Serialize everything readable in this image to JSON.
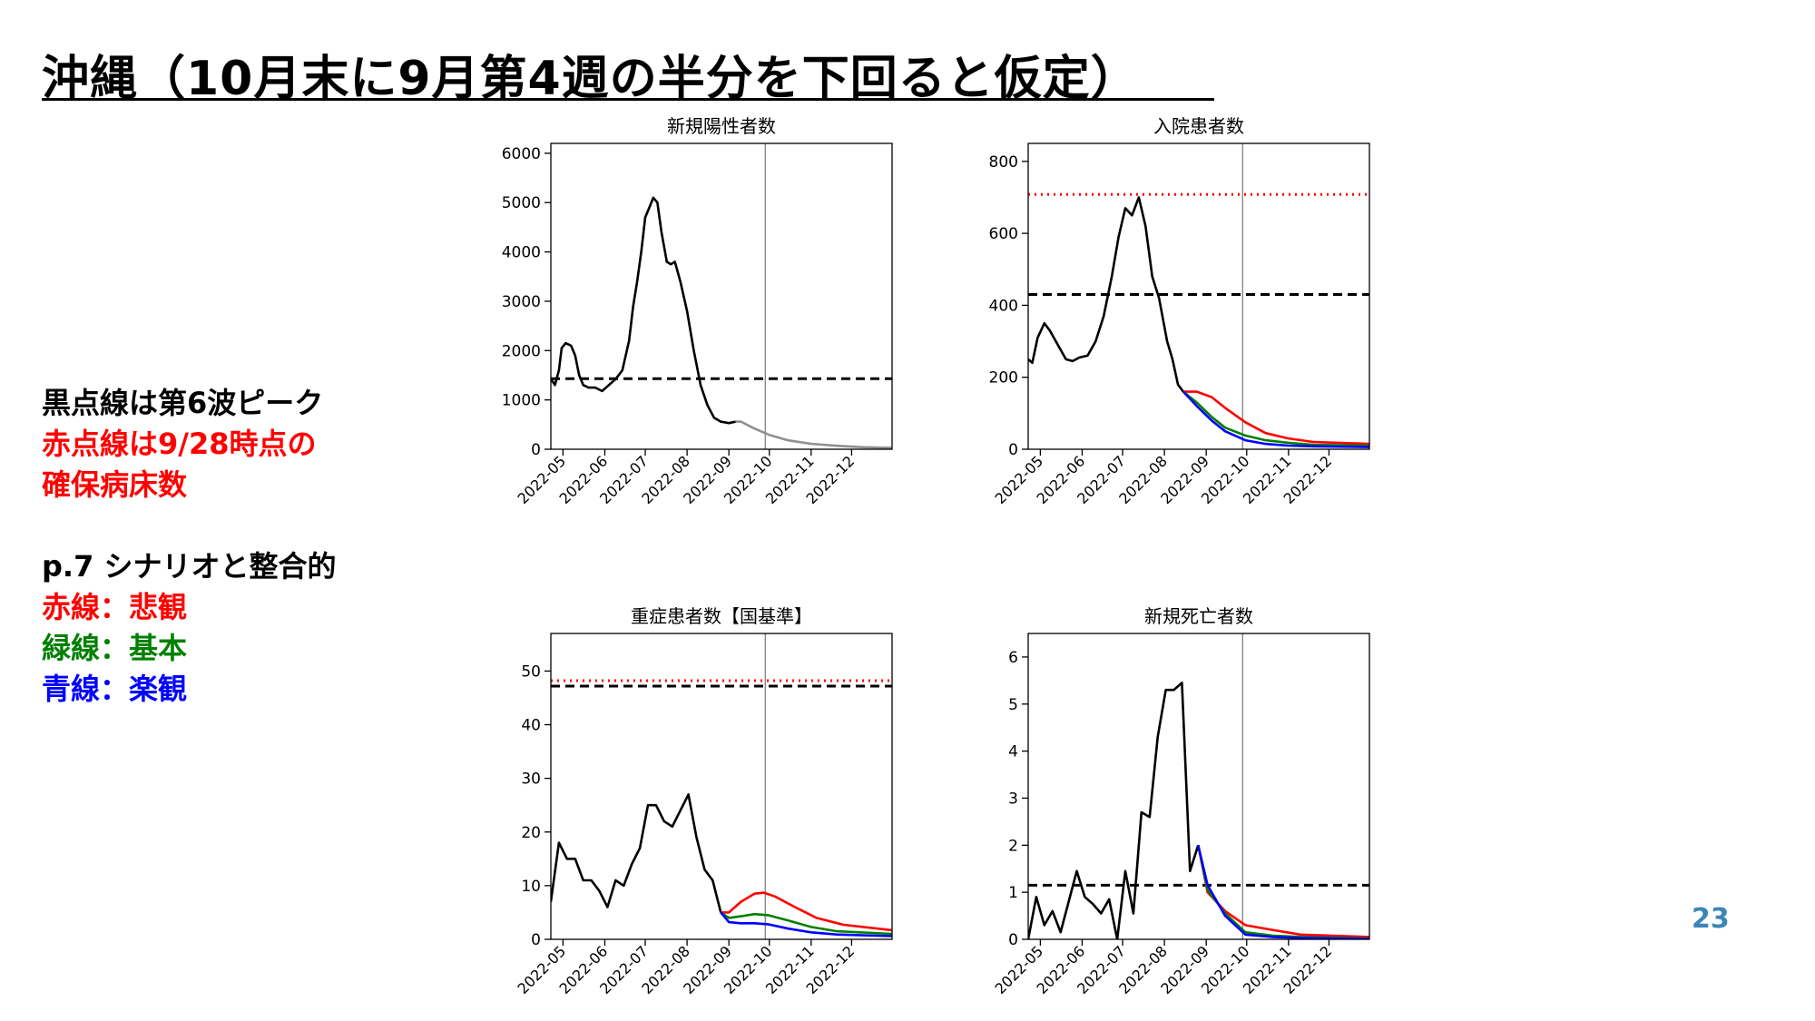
{
  "slide": {
    "title": "沖縄（10月末に9月第4週の半分を下回ると仮定）",
    "page_number": "23",
    "notes": {
      "line1": "黒点線は第6波ピーク",
      "line2": "赤点線は9/28時点の",
      "line3": "確保病床数",
      "line4": "p.7 シナリオと整合的",
      "line5": "赤線：悲観",
      "line6": "緑線：基本",
      "line7": "青線：楽観"
    }
  },
  "colors": {
    "observed": "#000000",
    "projection_grey": "#909090",
    "pessimistic": "#ff0000",
    "baseline": "#008000",
    "optimistic": "#0000ff",
    "page_number": "#3c86b8"
  },
  "chart_data": [
    {
      "id": "new-cases",
      "type": "line",
      "title": "新規陽性者数",
      "x_ticks": [
        "2022-05",
        "2022-06",
        "2022-07",
        "2022-08",
        "2022-09",
        "2022-10",
        "2022-11",
        "2022-12"
      ],
      "x_range": [
        "2022-04-22",
        "2022-12-31"
      ],
      "ylim": [
        0,
        6200
      ],
      "y_ticks": [
        0,
        1000,
        2000,
        3000,
        4000,
        5000,
        6000
      ],
      "vline": "2022-09-28",
      "hlines": [
        {
          "value": 1430,
          "style": "dashed",
          "color": "#000000"
        }
      ],
      "series": [
        {
          "color": "#000000",
          "points": [
            [
              "2022-04-22",
              1430
            ],
            [
              "2022-04-25",
              1300
            ],
            [
              "2022-04-28",
              1600
            ],
            [
              "2022-04-30",
              2050
            ],
            [
              "2022-05-03",
              2150
            ],
            [
              "2022-05-07",
              2100
            ],
            [
              "2022-05-10",
              1900
            ],
            [
              "2022-05-13",
              1500
            ],
            [
              "2022-05-16",
              1300
            ],
            [
              "2022-05-20",
              1250
            ],
            [
              "2022-05-25",
              1250
            ],
            [
              "2022-05-30",
              1180
            ],
            [
              "2022-06-04",
              1300
            ],
            [
              "2022-06-09",
              1420
            ],
            [
              "2022-06-14",
              1600
            ],
            [
              "2022-06-19",
              2200
            ],
            [
              "2022-06-22",
              2900
            ],
            [
              "2022-06-25",
              3400
            ],
            [
              "2022-06-28",
              4000
            ],
            [
              "2022-07-01",
              4700
            ],
            [
              "2022-07-04",
              4900
            ],
            [
              "2022-07-07",
              5100
            ],
            [
              "2022-07-10",
              5000
            ],
            [
              "2022-07-13",
              4400
            ],
            [
              "2022-07-17",
              3800
            ],
            [
              "2022-07-20",
              3750
            ],
            [
              "2022-07-23",
              3800
            ],
            [
              "2022-07-27",
              3400
            ],
            [
              "2022-08-01",
              2800
            ],
            [
              "2022-08-06",
              2000
            ],
            [
              "2022-08-11",
              1300
            ],
            [
              "2022-08-16",
              900
            ],
            [
              "2022-08-21",
              640
            ],
            [
              "2022-08-26",
              560
            ],
            [
              "2022-09-01",
              530
            ],
            [
              "2022-09-06",
              560
            ]
          ]
        },
        {
          "color": "#909090",
          "points": [
            [
              "2022-09-06",
              560
            ],
            [
              "2022-09-10",
              560
            ],
            [
              "2022-09-20",
              420
            ],
            [
              "2022-10-01",
              290
            ],
            [
              "2022-10-15",
              180
            ],
            [
              "2022-11-01",
              110
            ],
            [
              "2022-11-20",
              70
            ],
            [
              "2022-12-10",
              40
            ],
            [
              "2022-12-31",
              30
            ]
          ]
        }
      ]
    },
    {
      "id": "hospitalized",
      "type": "line",
      "title": "入院患者数",
      "x_ticks": [
        "2022-05",
        "2022-06",
        "2022-07",
        "2022-08",
        "2022-09",
        "2022-10",
        "2022-11",
        "2022-12"
      ],
      "x_range": [
        "2022-04-22",
        "2022-12-31"
      ],
      "ylim": [
        0,
        850
      ],
      "y_ticks": [
        0,
        200,
        400,
        600,
        800
      ],
      "vline": "2022-09-28",
      "hlines": [
        {
          "value": 708,
          "style": "dotted",
          "color": "#ff0000"
        },
        {
          "value": 430,
          "style": "dashed",
          "color": "#000000"
        }
      ],
      "series": [
        {
          "color": "#000000",
          "points": [
            [
              "2022-04-22",
              250
            ],
            [
              "2022-04-25",
              240
            ],
            [
              "2022-04-29",
              310
            ],
            [
              "2022-05-04",
              350
            ],
            [
              "2022-05-08",
              330
            ],
            [
              "2022-05-14",
              290
            ],
            [
              "2022-05-20",
              250
            ],
            [
              "2022-05-25",
              245
            ],
            [
              "2022-05-30",
              255
            ],
            [
              "2022-06-05",
              260
            ],
            [
              "2022-06-11",
              300
            ],
            [
              "2022-06-17",
              370
            ],
            [
              "2022-06-23",
              480
            ],
            [
              "2022-06-28",
              590
            ],
            [
              "2022-07-03",
              670
            ],
            [
              "2022-07-08",
              650
            ],
            [
              "2022-07-13",
              700
            ],
            [
              "2022-07-18",
              620
            ],
            [
              "2022-07-23",
              480
            ],
            [
              "2022-07-28",
              420
            ],
            [
              "2022-08-03",
              300
            ],
            [
              "2022-08-07",
              250
            ],
            [
              "2022-08-11",
              180
            ],
            [
              "2022-08-15",
              160
            ]
          ]
        },
        {
          "name": "悲観",
          "color": "#ff0000",
          "points": [
            [
              "2022-08-15",
              160
            ],
            [
              "2022-08-25",
              160
            ],
            [
              "2022-09-05",
              145
            ],
            [
              "2022-09-15",
              115
            ],
            [
              "2022-09-30",
              75
            ],
            [
              "2022-10-15",
              45
            ],
            [
              "2022-11-01",
              30
            ],
            [
              "2022-11-20",
              20
            ],
            [
              "2022-12-31",
              15
            ]
          ]
        },
        {
          "name": "基本",
          "color": "#008000",
          "points": [
            [
              "2022-08-15",
              160
            ],
            [
              "2022-08-25",
              130
            ],
            [
              "2022-09-05",
              90
            ],
            [
              "2022-09-15",
              60
            ],
            [
              "2022-09-30",
              38
            ],
            [
              "2022-10-15",
              25
            ],
            [
              "2022-11-01",
              18
            ],
            [
              "2022-11-20",
              12
            ],
            [
              "2022-12-31",
              10
            ]
          ]
        },
        {
          "name": "楽観",
          "color": "#0000ff",
          "points": [
            [
              "2022-08-15",
              160
            ],
            [
              "2022-08-25",
              120
            ],
            [
              "2022-09-05",
              80
            ],
            [
              "2022-09-15",
              50
            ],
            [
              "2022-09-30",
              25
            ],
            [
              "2022-10-15",
              15
            ],
            [
              "2022-11-01",
              10
            ],
            [
              "2022-11-20",
              8
            ],
            [
              "2022-12-31",
              6
            ]
          ]
        }
      ]
    },
    {
      "id": "severe",
      "type": "line",
      "title": "重症患者数【国基準】",
      "x_ticks": [
        "2022-05",
        "2022-06",
        "2022-07",
        "2022-08",
        "2022-09",
        "2022-10",
        "2022-11",
        "2022-12"
      ],
      "x_range": [
        "2022-04-22",
        "2022-12-31"
      ],
      "ylim": [
        0,
        57
      ],
      "y_ticks": [
        0,
        10,
        20,
        30,
        40,
        50
      ],
      "vline": "2022-09-28",
      "hlines": [
        {
          "value": 48.2,
          "style": "dotted",
          "color": "#ff0000"
        },
        {
          "value": 47.2,
          "style": "dashed",
          "color": "#000000"
        }
      ],
      "series": [
        {
          "color": "#000000",
          "points": [
            [
              "2022-04-22",
              7
            ],
            [
              "2022-04-28",
              18
            ],
            [
              "2022-05-04",
              15
            ],
            [
              "2022-05-10",
              15
            ],
            [
              "2022-05-16",
              11
            ],
            [
              "2022-05-22",
              11
            ],
            [
              "2022-05-28",
              9
            ],
            [
              "2022-06-03",
              6
            ],
            [
              "2022-06-09",
              11
            ],
            [
              "2022-06-15",
              10
            ],
            [
              "2022-06-21",
              14
            ],
            [
              "2022-06-27",
              17
            ],
            [
              "2022-07-03",
              25
            ],
            [
              "2022-07-09",
              25
            ],
            [
              "2022-07-15",
              22
            ],
            [
              "2022-07-21",
              21
            ],
            [
              "2022-07-27",
              24
            ],
            [
              "2022-08-02",
              27
            ],
            [
              "2022-08-08",
              19
            ],
            [
              "2022-08-14",
              13
            ],
            [
              "2022-08-20",
              11
            ],
            [
              "2022-08-26",
              5
            ]
          ]
        },
        {
          "name": "悲観",
          "color": "#ff0000",
          "points": [
            [
              "2022-08-26",
              5
            ],
            [
              "2022-09-01",
              5
            ],
            [
              "2022-09-10",
              7
            ],
            [
              "2022-09-20",
              8.5
            ],
            [
              "2022-09-27",
              8.7
            ],
            [
              "2022-10-05",
              8
            ],
            [
              "2022-10-20",
              6
            ],
            [
              "2022-11-05",
              4
            ],
            [
              "2022-11-25",
              2.7
            ],
            [
              "2022-12-31",
              1.7
            ]
          ]
        },
        {
          "name": "基本",
          "color": "#008000",
          "points": [
            [
              "2022-08-26",
              5
            ],
            [
              "2022-09-01",
              4
            ],
            [
              "2022-09-10",
              4.3
            ],
            [
              "2022-09-20",
              4.7
            ],
            [
              "2022-09-30",
              4.5
            ],
            [
              "2022-10-15",
              3.5
            ],
            [
              "2022-11-01",
              2.3
            ],
            [
              "2022-11-20",
              1.5
            ],
            [
              "2022-12-31",
              1
            ]
          ]
        },
        {
          "name": "楽観",
          "color": "#0000ff",
          "points": [
            [
              "2022-08-26",
              5
            ],
            [
              "2022-09-01",
              3.2
            ],
            [
              "2022-09-10",
              3
            ],
            [
              "2022-09-20",
              3
            ],
            [
              "2022-09-30",
              2.8
            ],
            [
              "2022-10-15",
              2
            ],
            [
              "2022-11-01",
              1.3
            ],
            [
              "2022-11-20",
              0.9
            ],
            [
              "2022-12-31",
              0.6
            ]
          ]
        }
      ]
    },
    {
      "id": "deaths",
      "type": "line",
      "title": "新規死亡者数",
      "x_ticks": [
        "2022-05",
        "2022-06",
        "2022-07",
        "2022-08",
        "2022-09",
        "2022-10",
        "2022-11",
        "2022-12"
      ],
      "x_range": [
        "2022-04-22",
        "2022-12-31"
      ],
      "ylim": [
        0,
        6.5
      ],
      "y_ticks": [
        0,
        1,
        2,
        3,
        4,
        5,
        6
      ],
      "vline": "2022-09-28",
      "hlines": [
        {
          "value": 1.15,
          "style": "dashed",
          "color": "#000000"
        }
      ],
      "series": [
        {
          "color": "#000000",
          "points": [
            [
              "2022-04-22",
              0
            ],
            [
              "2022-04-28",
              0.9
            ],
            [
              "2022-05-04",
              0.3
            ],
            [
              "2022-05-10",
              0.6
            ],
            [
              "2022-05-16",
              0.15
            ],
            [
              "2022-05-22",
              0.8
            ],
            [
              "2022-05-28",
              1.45
            ],
            [
              "2022-06-03",
              0.9
            ],
            [
              "2022-06-09",
              0.75
            ],
            [
              "2022-06-15",
              0.55
            ],
            [
              "2022-06-21",
              0.85
            ],
            [
              "2022-06-27",
              0
            ],
            [
              "2022-07-03",
              1.45
            ],
            [
              "2022-07-09",
              0.55
            ],
            [
              "2022-07-15",
              2.7
            ],
            [
              "2022-07-21",
              2.6
            ],
            [
              "2022-07-27",
              4.3
            ],
            [
              "2022-08-02",
              5.3
            ],
            [
              "2022-08-08",
              5.3
            ],
            [
              "2022-08-14",
              5.45
            ],
            [
              "2022-08-20",
              1.45
            ],
            [
              "2022-08-26",
              2
            ]
          ]
        },
        {
          "name": "悲観",
          "color": "#ff0000",
          "points": [
            [
              "2022-08-26",
              2
            ],
            [
              "2022-09-02",
              1
            ],
            [
              "2022-09-15",
              0.6
            ],
            [
              "2022-09-30",
              0.3
            ],
            [
              "2022-10-20",
              0.2
            ],
            [
              "2022-11-10",
              0.1
            ],
            [
              "2022-12-31",
              0.05
            ]
          ]
        },
        {
          "name": "基本",
          "color": "#008000",
          "points": [
            [
              "2022-08-26",
              2
            ],
            [
              "2022-09-02",
              1.05
            ],
            [
              "2022-09-15",
              0.55
            ],
            [
              "2022-09-30",
              0.15
            ],
            [
              "2022-10-20",
              0.08
            ],
            [
              "2022-11-10",
              0.05
            ],
            [
              "2022-12-31",
              0.02
            ]
          ]
        },
        {
          "name": "楽観",
          "color": "#0000ff",
          "points": [
            [
              "2022-08-26",
              2
            ],
            [
              "2022-09-02",
              1.15
            ],
            [
              "2022-09-15",
              0.5
            ],
            [
              "2022-09-30",
              0.1
            ],
            [
              "2022-10-20",
              0.05
            ],
            [
              "2022-11-10",
              0.03
            ],
            [
              "2022-12-31",
              0.01
            ]
          ]
        }
      ]
    }
  ]
}
